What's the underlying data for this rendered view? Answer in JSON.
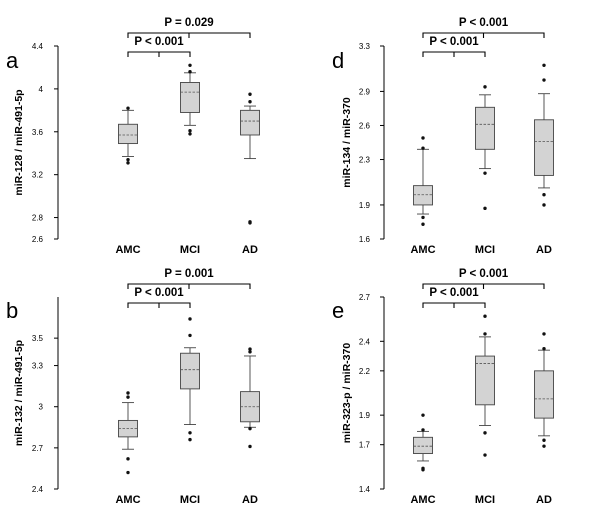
{
  "chart_data": [
    {
      "panel": "a",
      "type": "box",
      "ylabel": "miR-128 / miR-491-5p",
      "ylim": [
        2.6,
        4.4
      ],
      "yticks": [
        "2.6",
        "2.8",
        "3.2",
        "3.6",
        "4",
        "4.4"
      ],
      "categories": [
        "AMC",
        "MCI",
        "AD"
      ],
      "boxes": [
        {
          "name": "AMC",
          "min": 3.37,
          "q1": 3.49,
          "median": 3.57,
          "q3": 3.67,
          "max": 3.8,
          "outliers": [
            3.82,
            3.34,
            3.31
          ]
        },
        {
          "name": "MCI",
          "min": 3.66,
          "q1": 3.78,
          "median": 3.97,
          "q3": 4.06,
          "max": 4.15,
          "outliers": [
            4.22,
            4.16,
            3.61,
            3.58
          ]
        },
        {
          "name": "AD",
          "min": 3.35,
          "q1": 3.57,
          "median": 3.7,
          "q3": 3.8,
          "max": 3.84,
          "outliers": [
            3.95,
            3.88,
            2.75,
            2.76
          ]
        }
      ],
      "comparisons": [
        {
          "label": "P < 0.001",
          "from": "AMC",
          "to": "MCI"
        },
        {
          "label": "P = 0.029",
          "from": "AMC",
          "to": "AD"
        }
      ]
    },
    {
      "panel": "b",
      "type": "box",
      "ylabel": "miR-132 / miR-491-5p",
      "ylim": [
        2.4,
        3.8
      ],
      "yticks": [
        "2.4",
        "2.7",
        "3",
        "3.3",
        "3.5"
      ],
      "categories": [
        "AMC",
        "MCI",
        "AD"
      ],
      "boxes": [
        {
          "name": "AMC",
          "min": 2.69,
          "q1": 2.78,
          "median": 2.84,
          "q3": 2.9,
          "max": 3.03,
          "outliers": [
            3.1,
            3.07,
            2.62,
            2.52
          ]
        },
        {
          "name": "MCI",
          "min": 2.87,
          "q1": 3.13,
          "median": 3.27,
          "q3": 3.39,
          "max": 3.43,
          "outliers": [
            3.64,
            3.52,
            2.81,
            2.76
          ]
        },
        {
          "name": "AD",
          "min": 2.85,
          "q1": 2.89,
          "median": 3.0,
          "q3": 3.11,
          "max": 3.37,
          "outliers": [
            3.42,
            3.4,
            2.84,
            2.71
          ]
        }
      ],
      "comparisons": [
        {
          "label": "P < 0.001",
          "from": "AMC",
          "to": "MCI"
        },
        {
          "label": "P = 0.001",
          "from": "AMC",
          "to": "AD"
        }
      ]
    },
    {
      "panel": "d",
      "type": "box",
      "ylabel": "miR-134 / miR-370",
      "ylim": [
        1.6,
        3.3
      ],
      "yticks": [
        "1.6",
        "1.9",
        "2.3",
        "2.6",
        "2.9",
        "3.3"
      ],
      "categories": [
        "AMC",
        "MCI",
        "AD"
      ],
      "boxes": [
        {
          "name": "AMC",
          "min": 1.82,
          "q1": 1.9,
          "median": 1.99,
          "q3": 2.07,
          "max": 2.39,
          "outliers": [
            2.49,
            2.4,
            1.79,
            1.73
          ]
        },
        {
          "name": "MCI",
          "min": 2.22,
          "q1": 2.39,
          "median": 2.61,
          "q3": 2.76,
          "max": 2.87,
          "outliers": [
            2.94,
            2.18,
            1.87
          ]
        },
        {
          "name": "AD",
          "min": 2.05,
          "q1": 2.16,
          "median": 2.46,
          "q3": 2.65,
          "max": 2.88,
          "outliers": [
            3.13,
            3.0,
            1.99,
            1.9
          ]
        }
      ],
      "comparisons": [
        {
          "label": "P < 0.001",
          "from": "AMC",
          "to": "MCI"
        },
        {
          "label": "P < 0.001",
          "from": "AMC",
          "to": "AD"
        }
      ]
    },
    {
      "panel": "e",
      "type": "box",
      "ylabel": "miR-323-p / miR-370",
      "ylim": [
        1.4,
        2.7
      ],
      "yticks": [
        "1.4",
        "1.7",
        "1.9",
        "2.2",
        "2.4",
        "2.7"
      ],
      "categories": [
        "AMC",
        "MCI",
        "AD"
      ],
      "boxes": [
        {
          "name": "AMC",
          "min": 1.59,
          "q1": 1.64,
          "median": 1.69,
          "q3": 1.75,
          "max": 1.79,
          "outliers": [
            1.9,
            1.8,
            1.54,
            1.53
          ]
        },
        {
          "name": "MCI",
          "min": 1.83,
          "q1": 1.97,
          "median": 2.25,
          "q3": 2.3,
          "max": 2.43,
          "outliers": [
            2.57,
            2.45,
            1.78,
            1.63
          ]
        },
        {
          "name": "AD",
          "min": 1.76,
          "q1": 1.88,
          "median": 2.01,
          "q3": 2.2,
          "max": 2.34,
          "outliers": [
            2.45,
            2.35,
            1.73,
            1.69
          ]
        }
      ],
      "comparisons": [
        {
          "label": "P < 0.001",
          "from": "AMC",
          "to": "MCI"
        },
        {
          "label": "P < 0.001",
          "from": "AMC",
          "to": "AD"
        }
      ]
    }
  ]
}
